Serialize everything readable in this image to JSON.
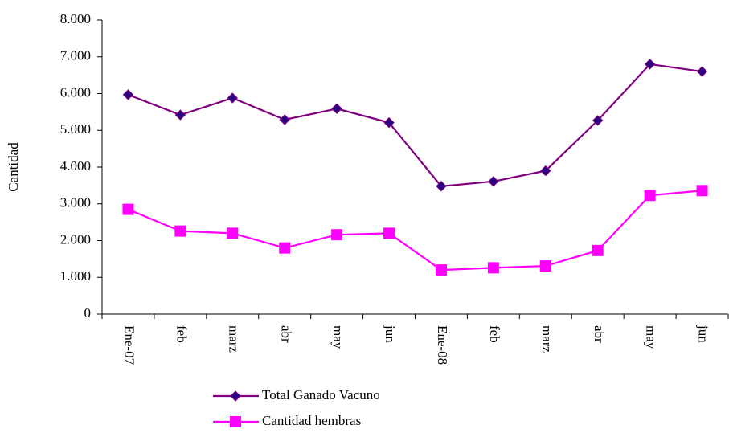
{
  "chart_data": {
    "type": "line",
    "y_label": "Cantidad",
    "categories": [
      "Ene-07",
      "feb",
      "marz",
      "abr",
      "may",
      "jun",
      "Ene-08",
      "feb",
      "marz",
      "abr",
      "may",
      "jun"
    ],
    "series": [
      {
        "name": "Total Ganado Vacuno",
        "color": "#800080",
        "marker": "diamond",
        "marker_color": "#2a0080",
        "values": [
          5970,
          5420,
          5880,
          5290,
          5590,
          5210,
          3480,
          3610,
          3900,
          5270,
          6800,
          6600
        ]
      },
      {
        "name": "Cantidad hembras",
        "color": "#ff00ff",
        "marker": "square",
        "marker_color": "#ff00ff",
        "values": [
          2850,
          2260,
          2200,
          1800,
          2160,
          2200,
          1200,
          1260,
          1310,
          1730,
          3230,
          3360
        ]
      }
    ],
    "ylim": [
      0,
      8000
    ],
    "yticks": [
      0,
      {
        "value": 1000,
        "label": "1.000"
      },
      {
        "value": 2000,
        "label": "2.000"
      },
      {
        "value": 3000,
        "label": "3.000"
      },
      {
        "value": 4000,
        "label": "4.000"
      },
      {
        "value": 5000,
        "label": "5.000"
      },
      {
        "value": 6000,
        "label": "6.000"
      },
      {
        "value": 7000,
        "label": "7.000"
      },
      {
        "value": 8000,
        "label": "8.000"
      }
    ],
    "grid": false,
    "legend": "bottom"
  }
}
